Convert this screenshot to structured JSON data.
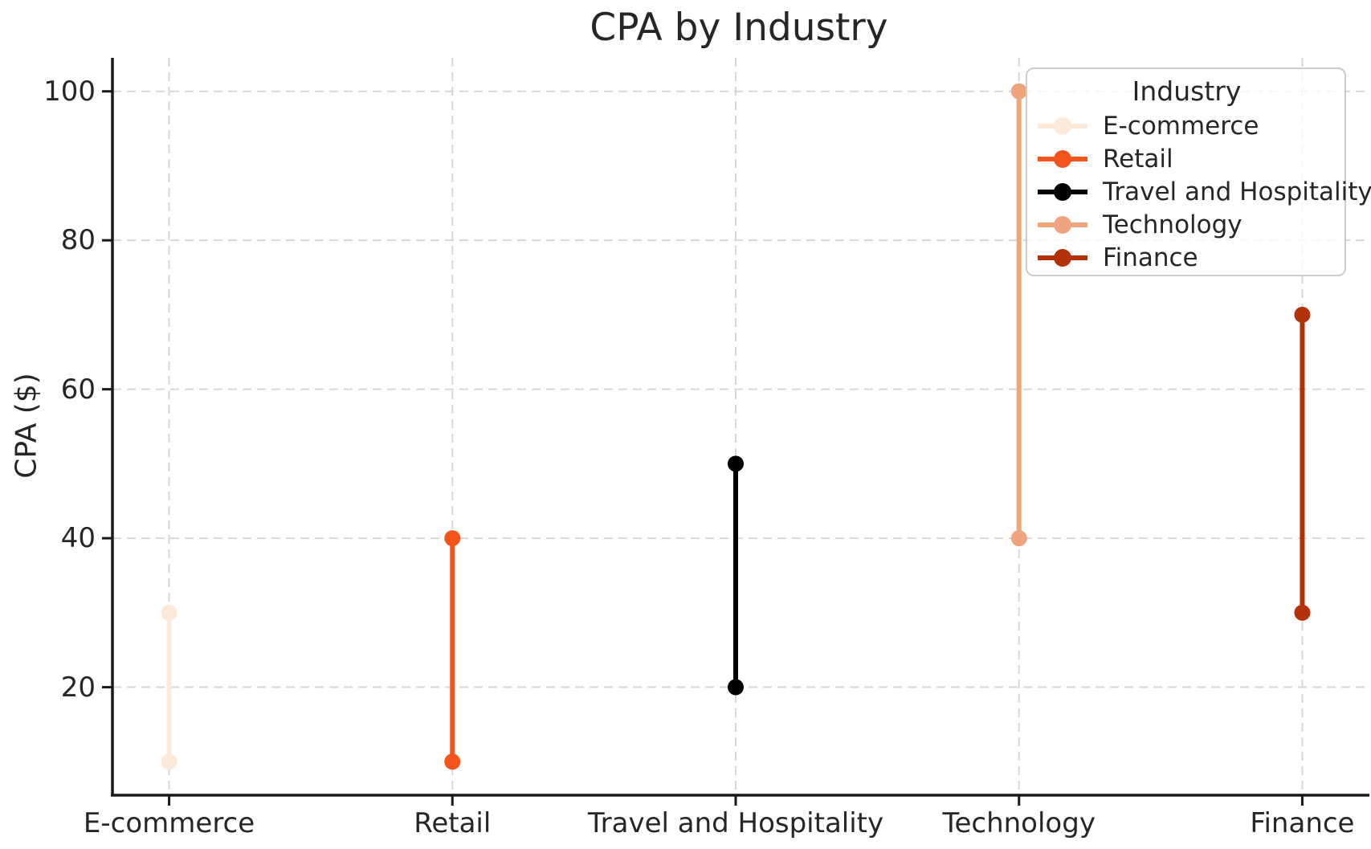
{
  "chart_data": {
    "type": "dumbbell-range",
    "title": "CPA by Industry",
    "ylabel": "CPA ($)",
    "xlabel": "",
    "categories": [
      "E-commerce",
      "Retail",
      "Travel and Hospitality",
      "Technology",
      "Finance"
    ],
    "series": [
      {
        "name": "E-commerce",
        "min": 10,
        "max": 30,
        "color": "#fce9da"
      },
      {
        "name": "Retail",
        "min": 10,
        "max": 40,
        "color": "#f4541c"
      },
      {
        "name": "Travel and Hospitality",
        "min": 20,
        "max": 50,
        "color": "#000000"
      },
      {
        "name": "Technology",
        "min": 40,
        "max": 100,
        "color": "#f0a47c"
      },
      {
        "name": "Finance",
        "min": 30,
        "max": 70,
        "color": "#b23109"
      }
    ],
    "yticks": [
      20,
      40,
      60,
      80,
      100
    ],
    "ylim": [
      5.5,
      104.5
    ],
    "legend": {
      "title": "Industry",
      "position": "upper right"
    },
    "grid": {
      "horizontal": true,
      "vertical": true,
      "style": "dashed",
      "color": "#d6d6d6"
    },
    "axis_color": "#1a1a1a",
    "text_color": "#262626",
    "background": "#ffffff"
  }
}
